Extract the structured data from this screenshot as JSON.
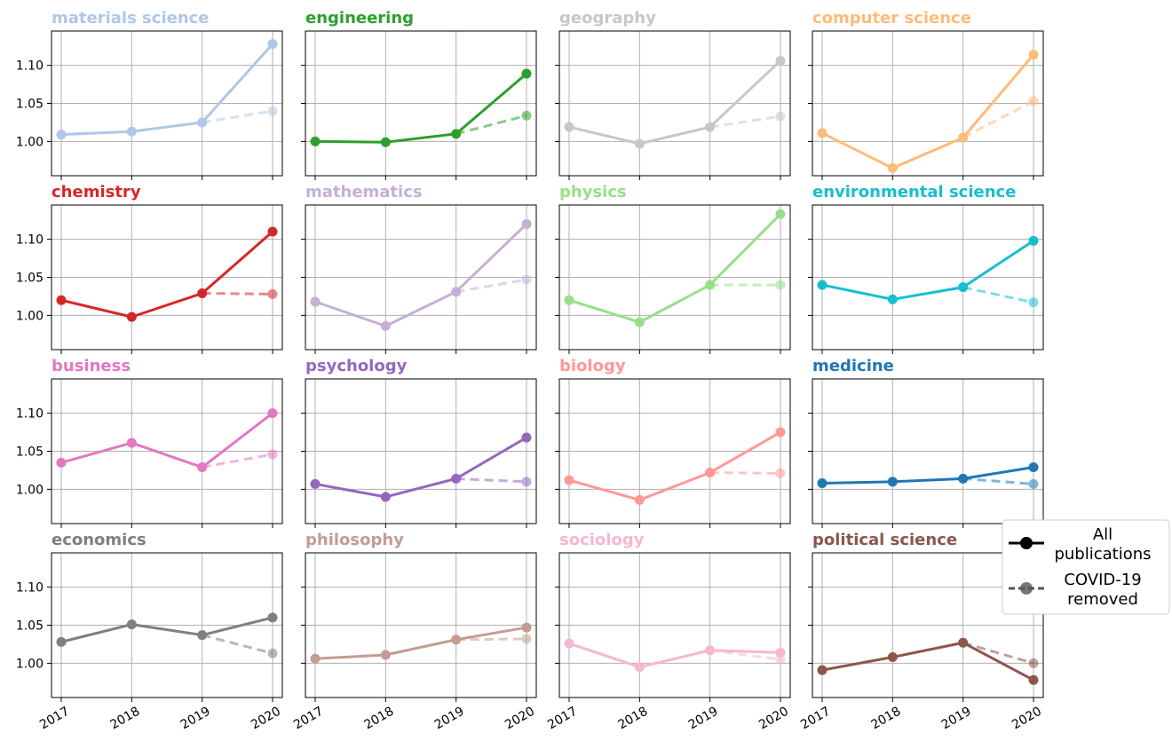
{
  "chart_data": {
    "type": "line",
    "layout": "small-multiples",
    "x": [
      "2017",
      "2018",
      "2019",
      "2020"
    ],
    "ylim": [
      0.955,
      1.145
    ],
    "yticks": [
      "1.00",
      "1.05",
      "1.10"
    ],
    "grid": true,
    "legend": {
      "placement": "right",
      "entries": [
        {
          "label_lines": [
            "All",
            "publications"
          ],
          "style": "solid"
        },
        {
          "label_lines": [
            "COVID-19",
            "removed"
          ],
          "style": "dashed"
        }
      ]
    },
    "panels": [
      {
        "title": "materials science",
        "color": "#aec7e8",
        "all": [
          1.009,
          1.013,
          1.025,
          1.128
        ],
        "covid_removed": [
          1.025,
          1.04
        ]
      },
      {
        "title": "engineering",
        "color": "#2ca02c",
        "all": [
          1.0,
          0.999,
          1.01,
          1.089
        ],
        "covid_removed": [
          1.01,
          1.034
        ]
      },
      {
        "title": "geography",
        "color": "#c7c7c7",
        "all": [
          1.019,
          0.997,
          1.019,
          1.106
        ],
        "covid_removed": [
          1.019,
          1.033
        ]
      },
      {
        "title": "computer science",
        "color": "#ffbb78",
        "all": [
          1.011,
          0.965,
          1.005,
          1.114
        ],
        "covid_removed": [
          1.005,
          1.053
        ]
      },
      {
        "title": "chemistry",
        "color": "#d62728",
        "all": [
          1.02,
          0.998,
          1.029,
          1.11
        ],
        "covid_removed": [
          1.029,
          1.028
        ]
      },
      {
        "title": "mathematics",
        "color": "#c5b0d5",
        "all": [
          1.018,
          0.986,
          1.031,
          1.12
        ],
        "covid_removed": [
          1.031,
          1.047
        ]
      },
      {
        "title": "physics",
        "color": "#98df8a",
        "all": [
          1.02,
          0.991,
          1.04,
          1.133
        ],
        "covid_removed": [
          1.04,
          1.04
        ]
      },
      {
        "title": "environmental science",
        "color": "#17becf",
        "all": [
          1.04,
          1.021,
          1.037,
          1.098
        ],
        "covid_removed": [
          1.037,
          1.017
        ]
      },
      {
        "title": "business",
        "color": "#e377c2",
        "all": [
          1.035,
          1.061,
          1.029,
          1.1
        ],
        "covid_removed": [
          1.029,
          1.046
        ]
      },
      {
        "title": "psychology",
        "color": "#9467bd",
        "all": [
          1.007,
          0.99,
          1.014,
          1.068
        ],
        "covid_removed": [
          1.014,
          1.01
        ]
      },
      {
        "title": "biology",
        "color": "#ff9896",
        "all": [
          1.012,
          0.986,
          1.022,
          1.075
        ],
        "covid_removed": [
          1.022,
          1.021
        ]
      },
      {
        "title": "medicine",
        "color": "#1f77b4",
        "all": [
          1.008,
          1.01,
          1.014,
          1.029
        ],
        "covid_removed": [
          1.014,
          1.007
        ]
      },
      {
        "title": "economics",
        "color": "#7f7f7f",
        "all": [
          1.028,
          1.051,
          1.037,
          1.06
        ],
        "covid_removed": [
          1.037,
          1.013
        ]
      },
      {
        "title": "philosophy",
        "color": "#c49c94",
        "all": [
          1.006,
          1.011,
          1.031,
          1.047
        ],
        "covid_removed": [
          1.031,
          1.032
        ]
      },
      {
        "title": "sociology",
        "color": "#f7b6d2",
        "all": [
          1.026,
          0.995,
          1.017,
          1.014
        ],
        "covid_removed": [
          1.017,
          1.005
        ]
      },
      {
        "title": "political science",
        "color": "#8c564b",
        "all": [
          0.991,
          1.008,
          1.027,
          0.978
        ],
        "covid_removed": [
          1.027,
          1.0
        ]
      }
    ]
  }
}
